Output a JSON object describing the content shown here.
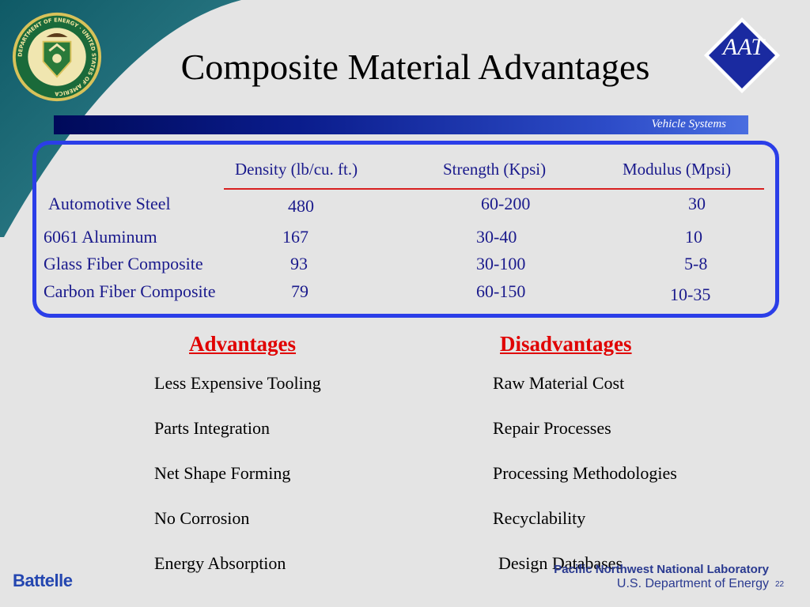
{
  "slide": {
    "title": "Composite Material Advantages",
    "banner_label": "Vehicle Systems",
    "aat_logo_text": "AAT",
    "seal_text": "DEPARTMENT OF ENERGY · UNITED STATES OF AMERICA",
    "page_number": "22"
  },
  "table": {
    "headers": [
      "Density (lb/cu. ft.)",
      "Strength (Kpsi)",
      "Modulus (Mpsi)"
    ],
    "rows": [
      {
        "material": "Automotive Steel",
        "density": "480",
        "strength": "60-200",
        "modulus": "30"
      },
      {
        "material": "6061 Aluminum",
        "density": "167",
        "strength": "30-40",
        "modulus": "10"
      },
      {
        "material": "Glass Fiber Composite",
        "density": "93",
        "strength": "30-100",
        "modulus": "5-8"
      },
      {
        "material": "Carbon Fiber  Composite",
        "density": "79",
        "strength": "60-150",
        "modulus": "10-35"
      }
    ]
  },
  "advantages": {
    "heading": "Advantages",
    "items": [
      "Less Expensive Tooling",
      "Parts Integration",
      "Net Shape Forming",
      "No Corrosion",
      "Energy Absorption"
    ]
  },
  "disadvantages": {
    "heading": "Disadvantages",
    "items": [
      "Raw Material Cost",
      "Repair Processes",
      "Processing Methodologies",
      "Recyclability",
      "Design Databases"
    ]
  },
  "footer": {
    "battelle": "Battelle",
    "lab": "Pacific Northwest National Laboratory",
    "department": "U.S. Department of Energy"
  },
  "colors": {
    "background": "#e4e4e4",
    "corner_teal": "#1e6b7a",
    "banner_blue": "#0a1c8c",
    "table_border": "#2b3ee8",
    "heading_red": "#e00000",
    "table_text": "#1a1a8c"
  },
  "icons": [
    "doe-seal-icon",
    "aat-diamond-logo-icon"
  ]
}
